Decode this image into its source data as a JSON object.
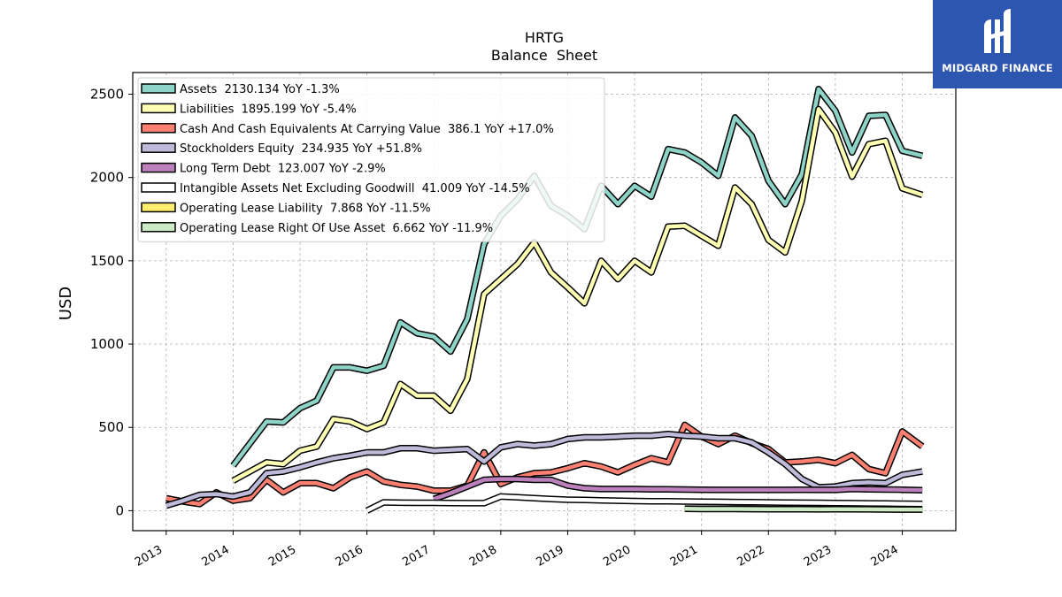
{
  "logo": {
    "text": "MIDGARD FINANCE"
  },
  "chart_data": {
    "type": "line",
    "title": "HRTG",
    "subtitle": "Balance  Sheet",
    "ylabel": "USD",
    "xlabel": "",
    "ylim": [
      -120,
      2630
    ],
    "xlim": [
      2012.5,
      2024.8
    ],
    "grid": true,
    "legend_position": "top-left",
    "x_ticks": [
      "2013",
      "2014",
      "2015",
      "2016",
      "2017",
      "2018",
      "2019",
      "2020",
      "2021",
      "2022",
      "2023",
      "2024"
    ],
    "y_ticks": [
      0,
      500,
      1000,
      1500,
      2000,
      2500
    ],
    "series": [
      {
        "name": "Assets",
        "legend_label": "Assets  2130.134 YoY -1.3%",
        "color": "#8dd3c7",
        "points": [
          [
            2014.0,
            270
          ],
          [
            2014.5,
            535
          ],
          [
            2014.75,
            530
          ],
          [
            2015.0,
            615
          ],
          [
            2015.25,
            660
          ],
          [
            2015.5,
            860
          ],
          [
            2015.75,
            860
          ],
          [
            2016.0,
            840
          ],
          [
            2016.25,
            870
          ],
          [
            2016.5,
            1130
          ],
          [
            2016.75,
            1065
          ],
          [
            2017.0,
            1045
          ],
          [
            2017.25,
            955
          ],
          [
            2017.5,
            1150
          ],
          [
            2017.75,
            1600
          ],
          [
            2018.0,
            1770
          ],
          [
            2018.25,
            1870
          ],
          [
            2018.5,
            2010
          ],
          [
            2018.75,
            1830
          ],
          [
            2019.0,
            1770
          ],
          [
            2019.25,
            1690
          ],
          [
            2019.5,
            1950
          ],
          [
            2019.75,
            1840
          ],
          [
            2020.0,
            1950
          ],
          [
            2020.25,
            1885
          ],
          [
            2020.5,
            2170
          ],
          [
            2020.75,
            2150
          ],
          [
            2021.0,
            2090
          ],
          [
            2021.25,
            2010
          ],
          [
            2021.5,
            2360
          ],
          [
            2021.75,
            2250
          ],
          [
            2022.0,
            1980
          ],
          [
            2022.25,
            1840
          ],
          [
            2022.5,
            2020
          ],
          [
            2022.75,
            2530
          ],
          [
            2023.0,
            2400
          ],
          [
            2023.25,
            2150
          ],
          [
            2023.5,
            2370
          ],
          [
            2023.75,
            2375
          ],
          [
            2024.0,
            2160
          ],
          [
            2024.3,
            2130
          ]
        ]
      },
      {
        "name": "Liabilities",
        "legend_label": "Liabilities  1895.199 YoY -5.4%",
        "color": "#ffffb3",
        "points": [
          [
            2014.0,
            180
          ],
          [
            2014.5,
            290
          ],
          [
            2014.75,
            280
          ],
          [
            2015.0,
            360
          ],
          [
            2015.25,
            385
          ],
          [
            2015.5,
            550
          ],
          [
            2015.75,
            535
          ],
          [
            2016.0,
            490
          ],
          [
            2016.25,
            530
          ],
          [
            2016.5,
            760
          ],
          [
            2016.75,
            690
          ],
          [
            2017.0,
            690
          ],
          [
            2017.25,
            600
          ],
          [
            2017.5,
            790
          ],
          [
            2017.75,
            1300
          ],
          [
            2018.0,
            1390
          ],
          [
            2018.25,
            1480
          ],
          [
            2018.5,
            1610
          ],
          [
            2018.75,
            1430
          ],
          [
            2019.0,
            1340
          ],
          [
            2019.25,
            1245
          ],
          [
            2019.5,
            1500
          ],
          [
            2019.75,
            1390
          ],
          [
            2020.0,
            1500
          ],
          [
            2020.25,
            1430
          ],
          [
            2020.5,
            1705
          ],
          [
            2020.75,
            1710
          ],
          [
            2021.0,
            1650
          ],
          [
            2021.25,
            1590
          ],
          [
            2021.5,
            1940
          ],
          [
            2021.75,
            1840
          ],
          [
            2022.0,
            1625
          ],
          [
            2022.25,
            1550
          ],
          [
            2022.5,
            1860
          ],
          [
            2022.75,
            2410
          ],
          [
            2023.0,
            2270
          ],
          [
            2023.25,
            2005
          ],
          [
            2023.5,
            2200
          ],
          [
            2023.75,
            2220
          ],
          [
            2024.0,
            1935
          ],
          [
            2024.3,
            1895
          ]
        ]
      },
      {
        "name": "Cash And Cash Equivalents At Carrying Value",
        "legend_label": "Cash And Cash Equivalents At Carrying Value  386.1 YoY +17.0%",
        "color": "#fb8072",
        "points": [
          [
            2013.0,
            75
          ],
          [
            2013.25,
            55
          ],
          [
            2013.5,
            40
          ],
          [
            2013.75,
            110
          ],
          [
            2014.0,
            60
          ],
          [
            2014.25,
            75
          ],
          [
            2014.5,
            185
          ],
          [
            2014.75,
            110
          ],
          [
            2015.0,
            165
          ],
          [
            2015.25,
            165
          ],
          [
            2015.5,
            135
          ],
          [
            2015.75,
            200
          ],
          [
            2016.0,
            235
          ],
          [
            2016.25,
            175
          ],
          [
            2016.5,
            155
          ],
          [
            2016.75,
            145
          ],
          [
            2017.0,
            120
          ],
          [
            2017.25,
            120
          ],
          [
            2017.5,
            150
          ],
          [
            2017.75,
            350
          ],
          [
            2018.0,
            160
          ],
          [
            2018.25,
            200
          ],
          [
            2018.5,
            225
          ],
          [
            2018.75,
            230
          ],
          [
            2019.0,
            255
          ],
          [
            2019.25,
            285
          ],
          [
            2019.5,
            265
          ],
          [
            2019.75,
            230
          ],
          [
            2020.0,
            275
          ],
          [
            2020.25,
            315
          ],
          [
            2020.5,
            290
          ],
          [
            2020.75,
            515
          ],
          [
            2021.0,
            445
          ],
          [
            2021.25,
            400
          ],
          [
            2021.5,
            450
          ],
          [
            2021.75,
            405
          ],
          [
            2022.0,
            370
          ],
          [
            2022.25,
            290
          ],
          [
            2022.5,
            295
          ],
          [
            2022.75,
            305
          ],
          [
            2023.0,
            285
          ],
          [
            2023.25,
            335
          ],
          [
            2023.5,
            250
          ],
          [
            2023.75,
            225
          ],
          [
            2024.0,
            475
          ],
          [
            2024.3,
            386
          ]
        ]
      },
      {
        "name": "Stockholders Equity",
        "legend_label": "Stockholders Equity  234.935 YoY +51.8%",
        "color": "#bebada",
        "points": [
          [
            2013.0,
            30
          ],
          [
            2013.25,
            60
          ],
          [
            2013.5,
            95
          ],
          [
            2013.75,
            100
          ],
          [
            2014.0,
            85
          ],
          [
            2014.25,
            110
          ],
          [
            2014.5,
            225
          ],
          [
            2014.75,
            235
          ],
          [
            2015.0,
            260
          ],
          [
            2015.25,
            290
          ],
          [
            2015.5,
            315
          ],
          [
            2015.75,
            330
          ],
          [
            2016.0,
            350
          ],
          [
            2016.25,
            350
          ],
          [
            2016.5,
            375
          ],
          [
            2016.75,
            375
          ],
          [
            2017.0,
            360
          ],
          [
            2017.25,
            365
          ],
          [
            2017.5,
            370
          ],
          [
            2017.75,
            295
          ],
          [
            2018.0,
            380
          ],
          [
            2018.25,
            400
          ],
          [
            2018.5,
            390
          ],
          [
            2018.75,
            400
          ],
          [
            2019.0,
            430
          ],
          [
            2019.25,
            440
          ],
          [
            2019.5,
            440
          ],
          [
            2019.75,
            445
          ],
          [
            2020.0,
            450
          ],
          [
            2020.25,
            450
          ],
          [
            2020.5,
            460
          ],
          [
            2020.75,
            450
          ],
          [
            2021.0,
            445
          ],
          [
            2021.25,
            435
          ],
          [
            2021.5,
            435
          ],
          [
            2021.75,
            410
          ],
          [
            2022.0,
            350
          ],
          [
            2022.25,
            280
          ],
          [
            2022.5,
            190
          ],
          [
            2022.75,
            140
          ],
          [
            2023.0,
            145
          ],
          [
            2023.25,
            165
          ],
          [
            2023.5,
            170
          ],
          [
            2023.75,
            165
          ],
          [
            2024.0,
            215
          ],
          [
            2024.3,
            235
          ]
        ]
      },
      {
        "name": "Long Term Debt",
        "legend_label": "Long Term Debt  123.007 YoY -2.9%",
        "color": "#bc80bd",
        "points": [
          [
            2017.0,
            70
          ],
          [
            2017.25,
            105
          ],
          [
            2017.5,
            145
          ],
          [
            2017.75,
            185
          ],
          [
            2018.0,
            190
          ],
          [
            2018.25,
            190
          ],
          [
            2018.5,
            185
          ],
          [
            2018.75,
            185
          ],
          [
            2019.0,
            150
          ],
          [
            2019.25,
            135
          ],
          [
            2019.5,
            130
          ],
          [
            2019.75,
            130
          ],
          [
            2020.0,
            130
          ],
          [
            2020.25,
            128
          ],
          [
            2020.5,
            128
          ],
          [
            2020.75,
            127
          ],
          [
            2021.0,
            126
          ],
          [
            2021.25,
            125
          ],
          [
            2021.5,
            125
          ],
          [
            2021.75,
            125
          ],
          [
            2022.0,
            125
          ],
          [
            2022.25,
            125
          ],
          [
            2022.5,
            126
          ],
          [
            2022.75,
            125
          ],
          [
            2023.0,
            125
          ],
          [
            2023.25,
            130
          ],
          [
            2023.5,
            128
          ],
          [
            2023.75,
            127
          ],
          [
            2024.0,
            126
          ],
          [
            2024.3,
            123
          ]
        ]
      },
      {
        "name": "Intangible Assets Net Excluding Goodwill",
        "legend_label": "Intangible Assets Net Excluding Goodwill  41.009 YoY -14.5%",
        "color": "#ffffff",
        "points": [
          [
            2016.0,
            0
          ],
          [
            2016.25,
            50
          ],
          [
            2016.5,
            48
          ],
          [
            2016.75,
            47
          ],
          [
            2017.0,
            47
          ],
          [
            2017.25,
            46
          ],
          [
            2017.5,
            45
          ],
          [
            2017.75,
            45
          ],
          [
            2018.0,
            85
          ],
          [
            2018.25,
            80
          ],
          [
            2018.5,
            75
          ],
          [
            2018.75,
            70
          ],
          [
            2019.0,
            66
          ],
          [
            2019.25,
            64
          ],
          [
            2019.5,
            62
          ],
          [
            2019.75,
            60
          ],
          [
            2020.0,
            58
          ],
          [
            2020.25,
            57
          ],
          [
            2020.5,
            56
          ],
          [
            2020.75,
            55
          ],
          [
            2021.0,
            54
          ],
          [
            2021.25,
            53
          ],
          [
            2021.5,
            52
          ],
          [
            2021.75,
            51
          ],
          [
            2022.0,
            50
          ],
          [
            2022.25,
            49
          ],
          [
            2022.5,
            48
          ],
          [
            2022.75,
            47
          ],
          [
            2023.0,
            46
          ],
          [
            2023.25,
            45
          ],
          [
            2023.5,
            44
          ],
          [
            2023.75,
            43
          ],
          [
            2024.0,
            42
          ],
          [
            2024.3,
            41
          ]
        ]
      },
      {
        "name": "Operating Lease Liability",
        "legend_label": "Operating Lease Liability  7.868 YoY -11.5%",
        "color": "#ffed6f",
        "points": [
          [
            2020.75,
            12
          ],
          [
            2021.0,
            11
          ],
          [
            2021.5,
            11
          ],
          [
            2022.0,
            10
          ],
          [
            2022.5,
            10
          ],
          [
            2022.75,
            9
          ],
          [
            2023.0,
            10
          ],
          [
            2023.5,
            9
          ],
          [
            2024.0,
            8
          ],
          [
            2024.3,
            8
          ]
        ]
      },
      {
        "name": "Operating Lease Right Of Use Asset",
        "legend_label": "Operating Lease Right Of Use Asset  6.662 YoY -11.9%",
        "color": "#ccebc5",
        "points": [
          [
            2020.75,
            11
          ],
          [
            2021.0,
            10
          ],
          [
            2021.5,
            10
          ],
          [
            2022.0,
            9
          ],
          [
            2022.5,
            9
          ],
          [
            2022.75,
            8
          ],
          [
            2023.0,
            9
          ],
          [
            2023.5,
            8
          ],
          [
            2024.0,
            7
          ],
          [
            2024.3,
            7
          ]
        ]
      }
    ]
  }
}
